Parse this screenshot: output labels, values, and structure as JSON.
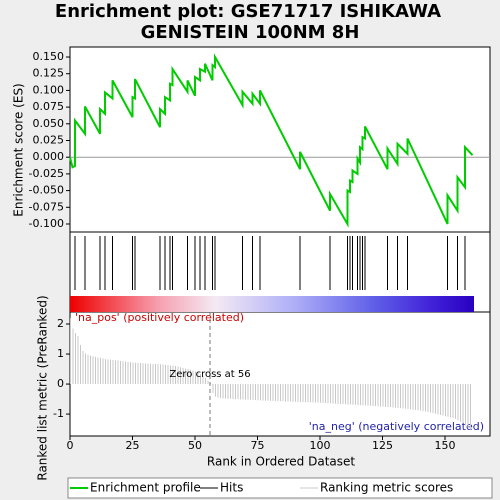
{
  "chart_data": {
    "type": "enrichment",
    "title_lines": [
      "Enrichment plot: GSE71717 ISHIKAWA",
      "GENISTEIN 100NM 8H"
    ],
    "ylabel": "Enrichment score (ES)",
    "metric_ylabel": "Ranked list metric (PreRanked)",
    "xlabel": "Rank in Ordered Dataset",
    "xlim": [
      0,
      168
    ],
    "xticks": [
      0,
      25,
      50,
      75,
      100,
      125,
      150
    ],
    "ylim": [
      -0.112,
      0.165
    ],
    "yticks": [
      {
        "value": 0.15,
        "label": "0.150"
      },
      {
        "value": 0.125,
        "label": "0.125"
      },
      {
        "value": 0.1,
        "label": "0.100"
      },
      {
        "value": 0.075,
        "label": "0.075"
      },
      {
        "value": 0.05,
        "label": "0.050"
      },
      {
        "value": 0.025,
        "label": "0.025"
      },
      {
        "value": 0,
        "label": "0.000"
      },
      {
        "value": -0.025,
        "label": "-0.025"
      },
      {
        "value": -0.05,
        "label": "-0.050"
      },
      {
        "value": -0.075,
        "label": "-0.075"
      },
      {
        "value": -0.1,
        "label": "-0.100"
      }
    ],
    "es_color": "#00cc00",
    "es_x": [
      0,
      1,
      2,
      2,
      6,
      6,
      12,
      12,
      14,
      14,
      17,
      17,
      25,
      25,
      26,
      26,
      36,
      36,
      38,
      38,
      40,
      40,
      41,
      41,
      47,
      47,
      50,
      50,
      52,
      52,
      54,
      54,
      57,
      57,
      58,
      58,
      69,
      69,
      73,
      73,
      76,
      76,
      92,
      92,
      104,
      104,
      111,
      111,
      112,
      112,
      113,
      113,
      115,
      115,
      116,
      116,
      117,
      117,
      118,
      118,
      127,
      127,
      131,
      131,
      135,
      135,
      151,
      151,
      155,
      155,
      158,
      158,
      161
    ],
    "es_y": [
      0,
      -0.015,
      -0.013,
      0.055,
      0.035,
      0.076,
      0.035,
      0.072,
      0.065,
      0.097,
      0.088,
      0.115,
      0.06,
      0.09,
      0.088,
      0.117,
      0.045,
      0.072,
      0.065,
      0.09,
      0.085,
      0.11,
      0.108,
      0.132,
      0.098,
      0.115,
      0.092,
      0.12,
      0.115,
      0.132,
      0.128,
      0.14,
      0.115,
      0.138,
      0.135,
      0.15,
      0.078,
      0.098,
      0.08,
      0.095,
      0.08,
      0.1,
      -0.018,
      0.008,
      -0.08,
      -0.055,
      -0.1,
      -0.05,
      -0.052,
      -0.035,
      -0.037,
      -0.02,
      -0.025,
      -0.002,
      -0.008,
      0.015,
      0.012,
      0.03,
      0.028,
      0.046,
      -0.018,
      0.013,
      -0.01,
      0.02,
      0.005,
      0.028,
      -0.1,
      -0.057,
      -0.08,
      -0.03,
      -0.045,
      0.015,
      0.003
    ],
    "hits": [
      2,
      6,
      12,
      14,
      17,
      25,
      26,
      36,
      38,
      40,
      41,
      47,
      50,
      52,
      54,
      57,
      58,
      69,
      73,
      76,
      92,
      104,
      111,
      112,
      113,
      115,
      116,
      117,
      118,
      127,
      131,
      135,
      151,
      155,
      158
    ],
    "metric_ylim": [
      -1.73,
      2.4
    ],
    "metric_yticks": [
      2,
      1,
      0,
      -1
    ],
    "metric_values": [
      2.2,
      1.85,
      1.7,
      1.6,
      1.3,
      1.1,
      1.02,
      0.98,
      0.95,
      0.93,
      0.91,
      0.89,
      0.87,
      0.85,
      0.83,
      0.82,
      0.81,
      0.8,
      0.79,
      0.78,
      0.77,
      0.76,
      0.75,
      0.74,
      0.73,
      0.72,
      0.71,
      0.7,
      0.7,
      0.69,
      0.69,
      0.68,
      0.68,
      0.67,
      0.67,
      0.66,
      0.66,
      0.65,
      0.64,
      0.63,
      0.62,
      0.61,
      0.6,
      0.58,
      0.56,
      0.54,
      0.52,
      0.5,
      0.48,
      0.45,
      0.42,
      0.38,
      0.33,
      0.27,
      0.2,
      0.12,
      0.04,
      -0.3,
      -0.42,
      -0.45,
      -0.47,
      -0.48,
      -0.48,
      -0.49,
      -0.49,
      -0.5,
      -0.5,
      -0.5,
      -0.51,
      -0.51,
      -0.52,
      -0.52,
      -0.52,
      -0.53,
      -0.53,
      -0.54,
      -0.54,
      -0.55,
      -0.55,
      -0.55,
      -0.56,
      -0.56,
      -0.56,
      -0.57,
      -0.57,
      -0.57,
      -0.58,
      -0.58,
      -0.58,
      -0.59,
      -0.59,
      -0.59,
      -0.6,
      -0.6,
      -0.6,
      -0.61,
      -0.61,
      -0.61,
      -0.62,
      -0.62,
      -0.62,
      -0.63,
      -0.63,
      -0.64,
      -0.64,
      -0.65,
      -0.65,
      -0.66,
      -0.66,
      -0.67,
      -0.67,
      -0.68,
      -0.68,
      -0.69,
      -0.69,
      -0.7,
      -0.7,
      -0.71,
      -0.71,
      -0.72,
      -0.72,
      -0.73,
      -0.73,
      -0.74,
      -0.75,
      -0.75,
      -0.76,
      -0.77,
      -0.77,
      -0.78,
      -0.79,
      -0.8,
      -0.8,
      -0.81,
      -0.82,
      -0.83,
      -0.84,
      -0.85,
      -0.86,
      -0.87,
      -0.88,
      -0.9,
      -0.91,
      -0.93,
      -0.95,
      -0.97,
      -0.99,
      -1.01,
      -1.03,
      -1.05,
      -1.07,
      -1.09,
      -1.11,
      -1.13,
      -1.16,
      -1.2,
      -1.25,
      -1.3,
      -1.38,
      -1.45,
      -1.52
    ],
    "zero_cross": 56,
    "zero_cross_label": "Zero cross at 56",
    "pos_label": "'na_pos' (positively correlated)",
    "neg_label": "'na_neg' (negatively correlated)",
    "legend": [
      {
        "name": "Enrichment profile",
        "color": "#00cc00"
      },
      {
        "name": "Hits",
        "color": "#000000"
      },
      {
        "name": "Ranking metric scores",
        "color": "#cccccc"
      }
    ]
  }
}
